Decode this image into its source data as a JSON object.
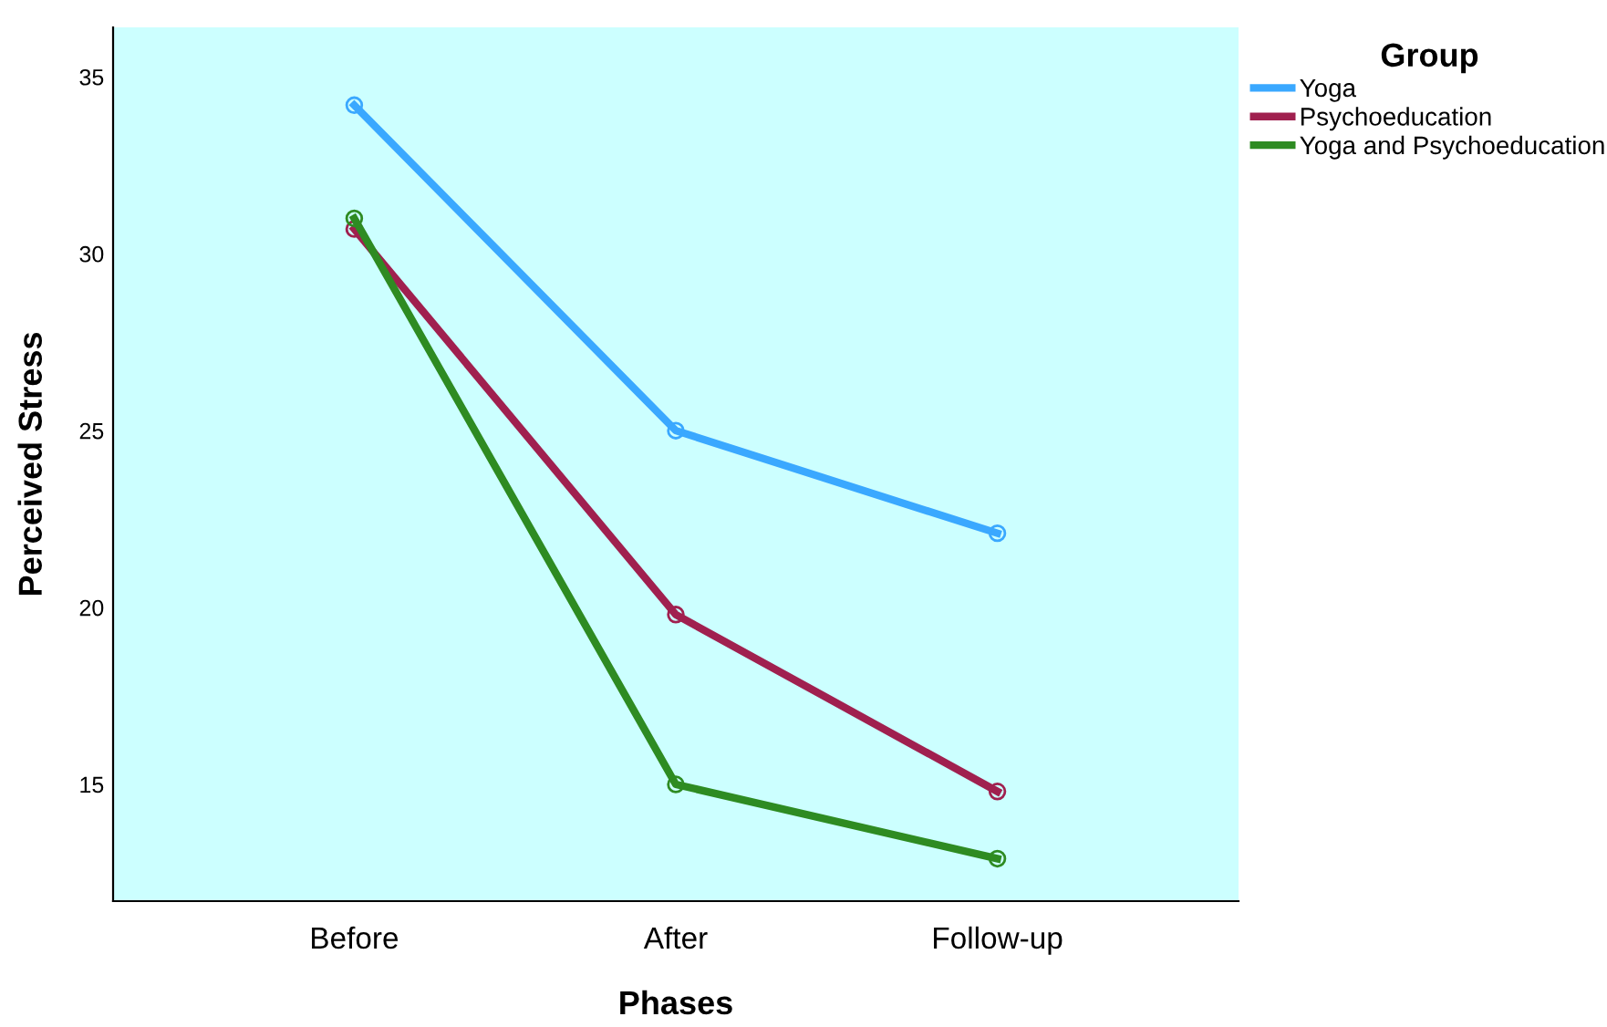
{
  "chart_data": {
    "type": "line",
    "xlabel": "Phases",
    "ylabel": "Perceived Stress",
    "legend_title": "Group",
    "categories": [
      "Before",
      "After",
      "Follow-up"
    ],
    "series": [
      {
        "name": "Yoga",
        "color": "#3aa8ff",
        "values": [
          34.2,
          25.0,
          22.1
        ]
      },
      {
        "name": "Psychoeducation",
        "color": "#a0204f",
        "values": [
          30.7,
          19.8,
          14.8
        ]
      },
      {
        "name": "Yoga and Psychoeducation",
        "color": "#2e8b22",
        "values": [
          31.0,
          15.0,
          12.9
        ]
      }
    ],
    "ylim": [
      11.7,
      36.4
    ],
    "yticks": [
      15,
      20,
      25,
      30,
      35
    ],
    "marker": "circle",
    "line_style": "solid",
    "grid": false,
    "legend": "top right"
  }
}
